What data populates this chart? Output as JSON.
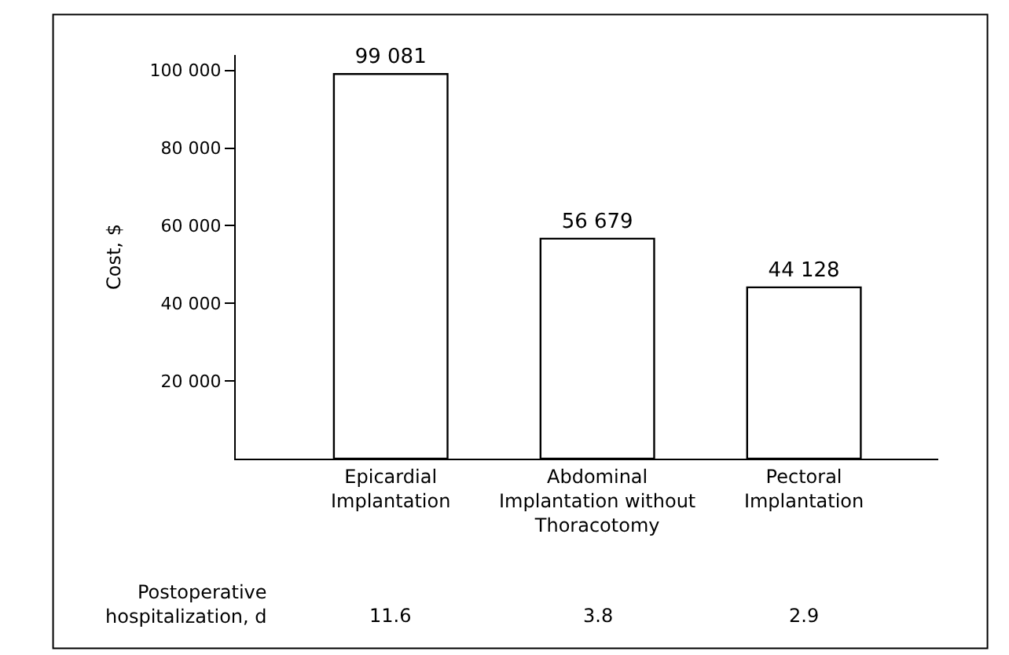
{
  "chart_data": {
    "type": "bar",
    "ylabel": "Cost, $",
    "categories": [
      "Epicardial\nImplantation",
      "Abdominal\nImplantation without\nThoracotomy",
      "Pectoral\nImplantation"
    ],
    "values": [
      99081,
      56679,
      44128
    ],
    "color": "#ffffff",
    "value_labels": [
      "99 081",
      "56 679",
      "44 128"
    ],
    "ylim": [
      0,
      104000
    ],
    "yticks": [
      {
        "value": 20000,
        "label": "20 000"
      },
      {
        "value": 40000,
        "label": "40 000"
      },
      {
        "value": 60000,
        "label": "60 000"
      },
      {
        "value": 80000,
        "label": "80 000"
      },
      {
        "value": 100000,
        "label": "100 000"
      }
    ],
    "annotations": [
      "Postoperative\nhospitalization, d",
      "11.6",
      "3.8",
      "2.9"
    ]
  }
}
